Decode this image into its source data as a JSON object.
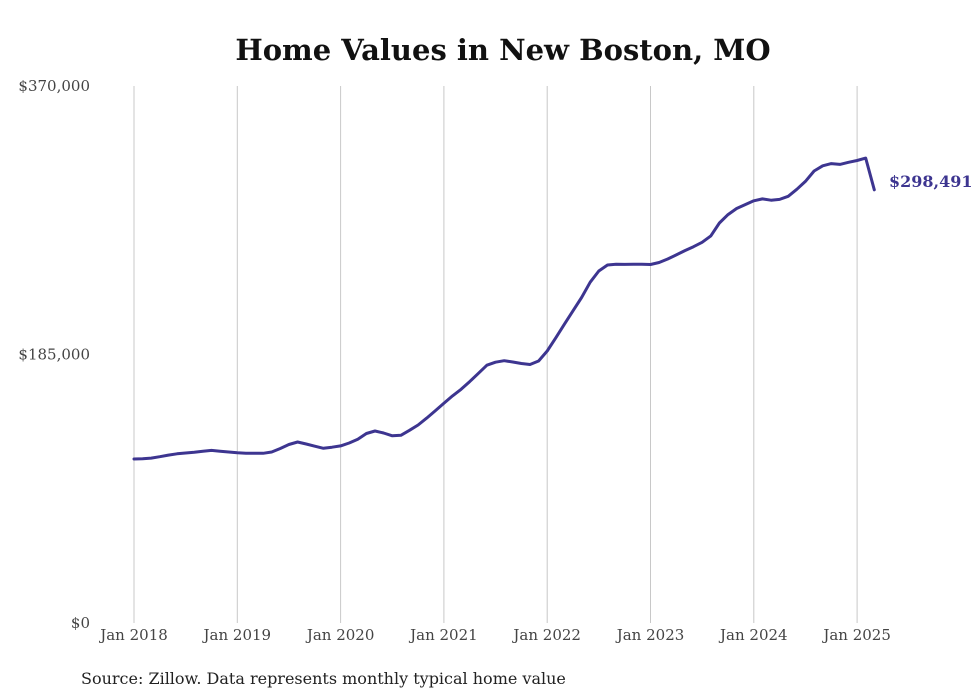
{
  "chart_data": {
    "type": "line",
    "title": "Home Values in New Boston, MO",
    "xlabel": "",
    "ylabel": "",
    "y_ticks": [
      "$0",
      "$185,000",
      "$370,000"
    ],
    "y_tick_values": [
      0,
      185000,
      370000
    ],
    "ylim": [
      0,
      370000
    ],
    "x_ticks": [
      "Jan 2018",
      "Jan 2019",
      "Jan 2020",
      "Jan 2021",
      "Jan 2022",
      "Jan 2023",
      "Jan 2024",
      "Jan 2025"
    ],
    "x_tick_dates": [
      "2018-01",
      "2019-01",
      "2020-01",
      "2021-01",
      "2022-01",
      "2023-01",
      "2024-01",
      "2025-01"
    ],
    "grid": "vertical",
    "series": [
      {
        "color": "#3d3590",
        "x": [
          "2018-01",
          "2018-02",
          "2018-03",
          "2018-04",
          "2018-05",
          "2018-06",
          "2018-07",
          "2018-08",
          "2018-09",
          "2018-10",
          "2018-11",
          "2018-12",
          "2019-01",
          "2019-02",
          "2019-03",
          "2019-04",
          "2019-05",
          "2019-06",
          "2019-07",
          "2019-08",
          "2019-09",
          "2019-10",
          "2019-11",
          "2019-12",
          "2020-01",
          "2020-02",
          "2020-03",
          "2020-04",
          "2020-05",
          "2020-06",
          "2020-07",
          "2020-08",
          "2020-09",
          "2020-10",
          "2020-11",
          "2020-12",
          "2021-01",
          "2021-02",
          "2021-03",
          "2021-04",
          "2021-05",
          "2021-06",
          "2021-07",
          "2021-08",
          "2021-09",
          "2021-10",
          "2021-11",
          "2021-12",
          "2022-01",
          "2022-02",
          "2022-03",
          "2022-04",
          "2022-05",
          "2022-06",
          "2022-07",
          "2022-08",
          "2022-09",
          "2022-10",
          "2022-11",
          "2022-12",
          "2023-01",
          "2023-02",
          "2023-03",
          "2023-04",
          "2023-05",
          "2023-06",
          "2023-07",
          "2023-08",
          "2023-09",
          "2023-10",
          "2023-11",
          "2023-12",
          "2024-01",
          "2024-02",
          "2024-03",
          "2024-04",
          "2024-05",
          "2024-06",
          "2024-07",
          "2024-08",
          "2024-09",
          "2024-10",
          "2024-11",
          "2024-12",
          "2025-01",
          "2025-02",
          "2025-03"
        ],
        "values": [
          113000,
          113200,
          113600,
          114600,
          115700,
          116600,
          117100,
          117600,
          118300,
          118900,
          118400,
          117800,
          117300,
          117000,
          116900,
          116900,
          117800,
          120200,
          123000,
          124700,
          123300,
          121800,
          120400,
          121100,
          122000,
          124000,
          126600,
          130600,
          132300,
          130900,
          129000,
          129300,
          132800,
          136400,
          141200,
          146300,
          151400,
          156500,
          161000,
          166300,
          172000,
          177600,
          179700,
          180700,
          179800,
          178800,
          178100,
          180500,
          187400,
          196500,
          205900,
          215100,
          224300,
          234800,
          242500,
          246700,
          247200,
          247100,
          247200,
          247200,
          247000,
          248400,
          250800,
          253600,
          256600,
          259300,
          262300,
          266700,
          275600,
          281400,
          285600,
          288300,
          290900,
          292200,
          291300,
          291900,
          294000,
          298800,
          304300,
          311400,
          315000,
          316500,
          316000,
          317400,
          318700,
          320300,
          298491
        ]
      }
    ],
    "end_label": "$298,491",
    "source": "Source: Zillow. Data represents monthly typical home value"
  }
}
